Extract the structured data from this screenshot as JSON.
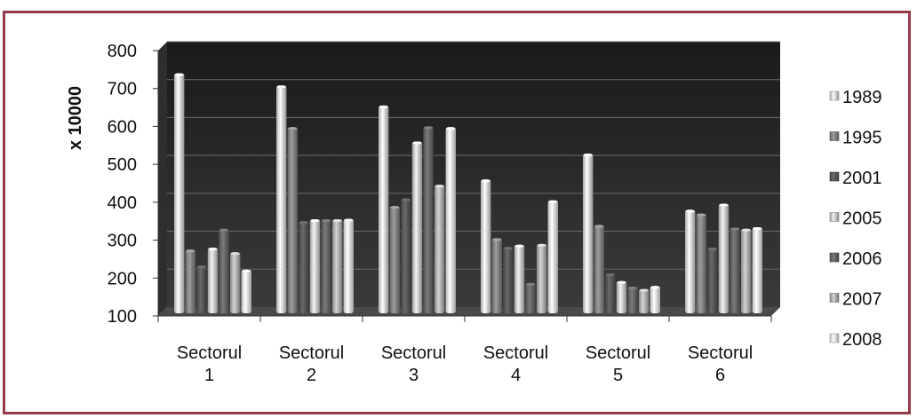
{
  "chart_data": {
    "type": "bar",
    "ylabel": "x 10000",
    "ylim": [
      100,
      800
    ],
    "yticks": [
      "100",
      "200",
      "300",
      "400",
      "500",
      "600",
      "700",
      "800"
    ],
    "categories": [
      [
        "Sectorul",
        "1"
      ],
      [
        "Sectorul",
        "2"
      ],
      [
        "Sectorul",
        "3"
      ],
      [
        "Sectorul",
        "4"
      ],
      [
        "Sectorul",
        "5"
      ],
      [
        "Sectorul",
        "6"
      ]
    ],
    "series": [
      {
        "name": "1989",
        "color": "#ececec",
        "values": [
          740,
          708,
          655,
          460,
          528,
          380
        ]
      },
      {
        "name": "1995",
        "color": "#8c8c8c",
        "values": [
          275,
          598,
          390,
          305,
          340,
          370
        ]
      },
      {
        "name": "2001",
        "color": "#5e5e5e",
        "values": [
          233,
          350,
          410,
          282,
          212,
          280
        ]
      },
      {
        "name": "2005",
        "color": "#d9d9d9",
        "values": [
          280,
          355,
          560,
          288,
          192,
          396
        ]
      },
      {
        "name": "2006",
        "color": "#6e6e6e",
        "values": [
          330,
          355,
          600,
          187,
          177,
          333
        ]
      },
      {
        "name": "2007",
        "color": "#bdbdbd",
        "values": [
          268,
          355,
          446,
          290,
          171,
          330
        ]
      },
      {
        "name": "2008",
        "color": "#ffffff",
        "values": [
          222,
          356,
          598,
          405,
          179,
          334
        ]
      }
    ],
    "legend_position": "right",
    "grid": true
  }
}
